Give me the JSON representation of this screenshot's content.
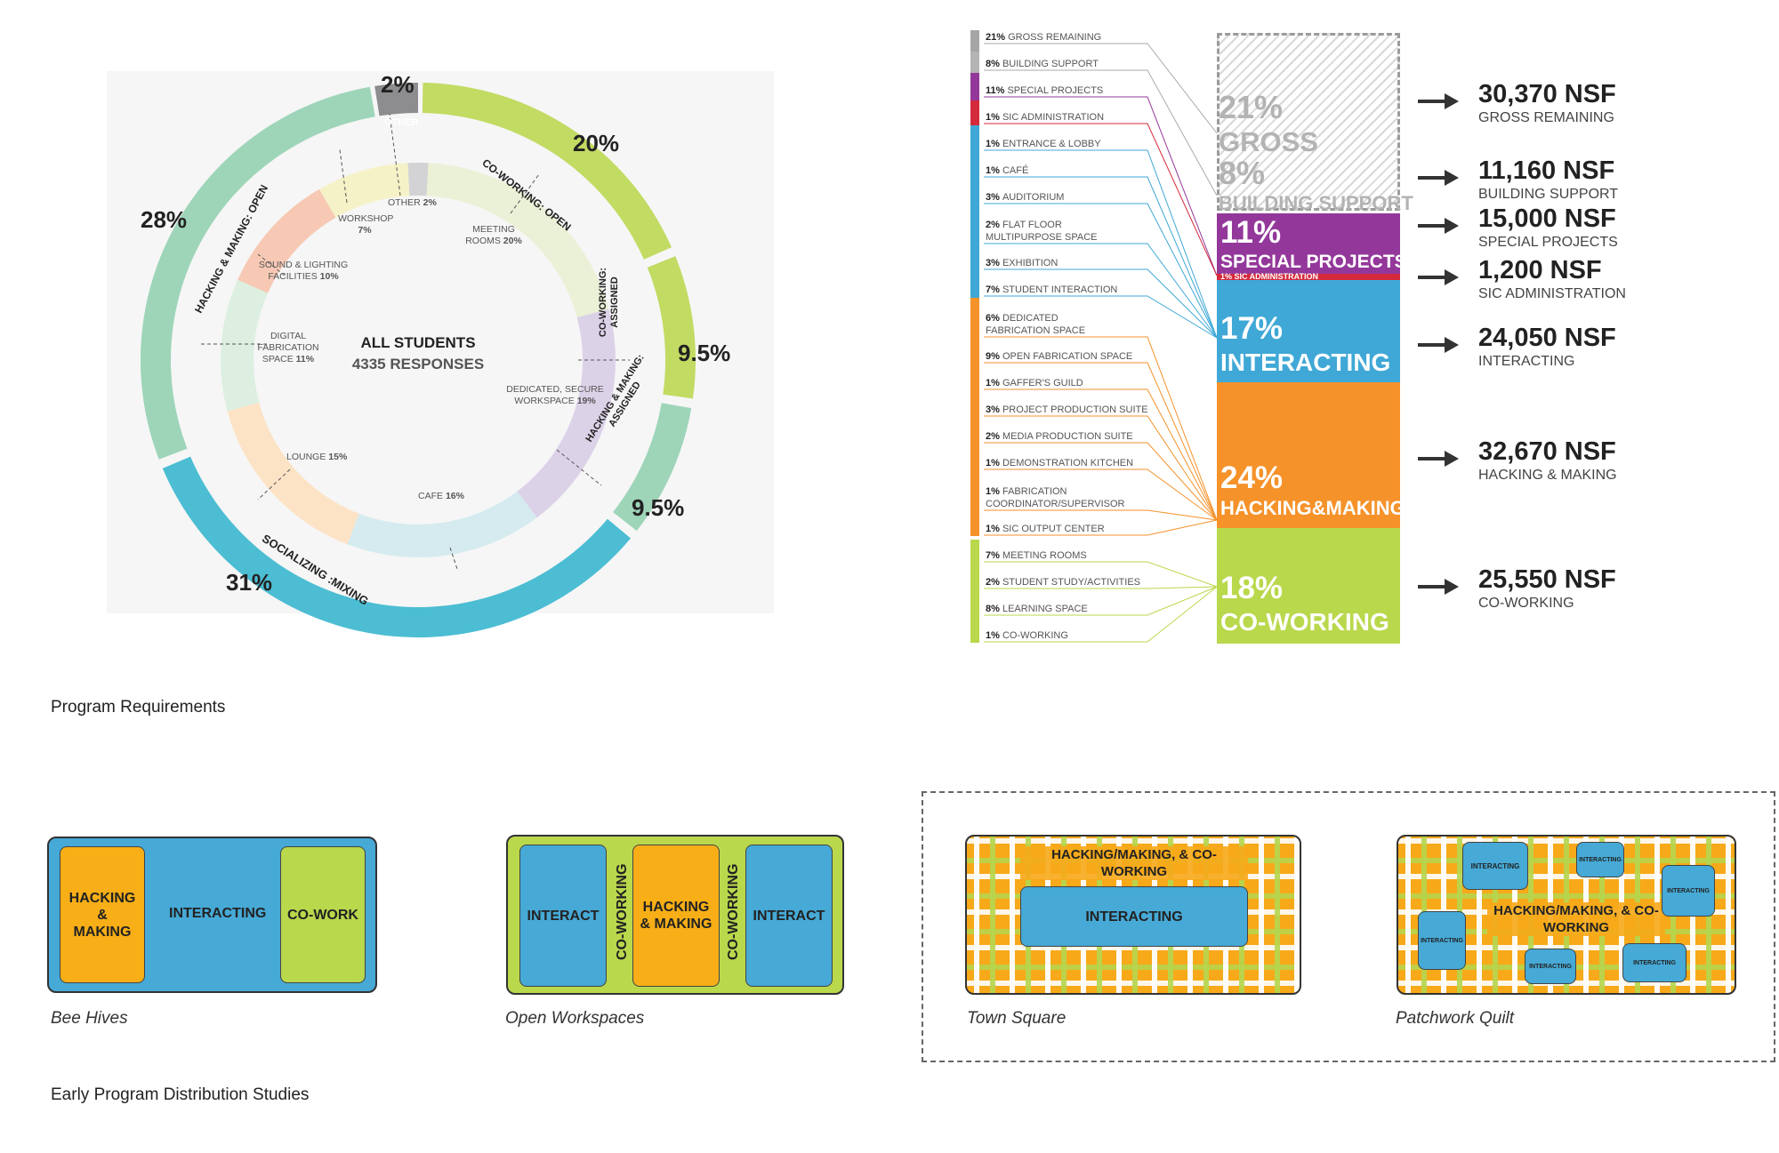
{
  "donut": {
    "center_title": "ALL STUDENTS",
    "center_subtitle": "4335 RESPONSES",
    "outer": [
      {
        "label": "OTHER",
        "pct": "2%"
      },
      {
        "label": "CO-WORKING: OPEN",
        "pct": "20%"
      },
      {
        "label": "CO-WORKING: ASSIGNED",
        "pct": "9.5%"
      },
      {
        "label": "HACKING & MAKING: ASSIGNED",
        "pct": "9.5%"
      },
      {
        "label": "SOCIALIZING :MIXING",
        "pct": "31%"
      },
      {
        "label": "HACKING & MAKING: OPEN",
        "pct": "28%"
      }
    ],
    "inner": [
      {
        "name": "OTHER",
        "pct": "2%"
      },
      {
        "name": "MEETING ROOMS",
        "pct": "20%"
      },
      {
        "name": "DEDICATED, SECURE WORKSPACE",
        "pct": "19%"
      },
      {
        "name": "CAFE",
        "pct": "16%"
      },
      {
        "name": "LOUNGE",
        "pct": "15%"
      },
      {
        "name": "DIGITAL FABRICATION SPACE",
        "pct": "11%"
      },
      {
        "name": "SOUND & LIGHTING FACILITIES",
        "pct": "10%"
      },
      {
        "name": "WORKSHOP",
        "pct": "7%"
      }
    ]
  },
  "program_list": [
    {
      "pct": "21%",
      "name": "GROSS REMAINING"
    },
    {
      "pct": "8%",
      "name": "BUILDING SUPPORT"
    },
    {
      "pct": "11%",
      "name": "SPECIAL PROJECTS"
    },
    {
      "pct": "1%",
      "name": "SIC ADMINISTRATION"
    },
    {
      "pct": "1%",
      "name": "ENTRANCE & LOBBY"
    },
    {
      "pct": "1%",
      "name": "CAFÉ"
    },
    {
      "pct": "3%",
      "name": "AUDITORIUM"
    },
    {
      "pct": "2%",
      "name": "FLAT FLOOR",
      "name2": "MULTIPURPOSE SPACE"
    },
    {
      "pct": "3%",
      "name": "EXHIBITION"
    },
    {
      "pct": "7%",
      "name": "STUDENT INTERACTION"
    },
    {
      "pct": "6%",
      "name": "DEDICATED",
      "name2": "FABRICATION SPACE"
    },
    {
      "pct": "9%",
      "name": "OPEN FABRICATION SPACE"
    },
    {
      "pct": "1%",
      "name": "GAFFER'S GUILD"
    },
    {
      "pct": "3%",
      "name": "PROJECT PRODUCTION SUITE"
    },
    {
      "pct": "2%",
      "name": "MEDIA PRODUCTION SUITE"
    },
    {
      "pct": "1%",
      "name": "DEMONSTRATION KITCHEN"
    },
    {
      "pct": "1%",
      "name": "FABRICATION",
      "name2": "COORDINATOR/SUPERVISOR"
    },
    {
      "pct": "1%",
      "name": "SIC OUTPUT CENTER"
    },
    {
      "pct": "7%",
      "name": "MEETING ROOMS"
    },
    {
      "pct": "2%",
      "name": "STUDENT STUDY/ACTIVITIES"
    },
    {
      "pct": "8%",
      "name": "LEARNING SPACE"
    },
    {
      "pct": "1%",
      "name": "CO-WORKING"
    }
  ],
  "stack": {
    "gross_pct": "21%",
    "gross_label": "GROSS",
    "support_pct": "8%",
    "support_label": "BUILDING SUPPORT",
    "special_pct": "11%",
    "special_label": "SPECIAL PROJECTS",
    "admin_label": "1% SIC ADMINISTRATION",
    "interacting_pct": "17%",
    "interacting_label": "INTERACTING",
    "hacking_pct": "24%",
    "hacking_label": "HACKING&MAKING",
    "coworking_pct": "18%",
    "coworking_label": "CO-WORKING"
  },
  "nsf": [
    {
      "value": "30,370 NSF",
      "label": "GROSS REMAINING"
    },
    {
      "value": "11,160 NSF",
      "label": "BUILDING SUPPORT"
    },
    {
      "value": "15,000 NSF",
      "label": "SPECIAL PROJECTS"
    },
    {
      "value": "1,200 NSF",
      "label": "SIC ADMINISTRATION"
    },
    {
      "value": "24,050 NSF",
      "label": "INTERACTING"
    },
    {
      "value": "32,670 NSF",
      "label": "HACKING & MAKING"
    },
    {
      "value": "25,550 NSF",
      "label": "CO-WORKING"
    }
  ],
  "captions": {
    "program_requirements": "Program Requirements",
    "early_studies": "Early Program Distribution Studies"
  },
  "studies": {
    "bee_hives": {
      "caption": "Bee Hives",
      "hacking": "HACKING & MAKING",
      "interacting": "INTERACTING",
      "cowork": "CO-WORK"
    },
    "open_workspaces": {
      "caption": "Open Workspaces",
      "interact": "INTERACT",
      "coworking": "CO-WORKING",
      "hacking": "HACKING & MAKING"
    },
    "town_square": {
      "caption": "Town Square",
      "top": "HACKING/MAKING, & CO-WORKING",
      "interacting": "INTERACTING"
    },
    "patchwork_quilt": {
      "caption": "Patchwork Quilt",
      "main": "HACKING/MAKING, & CO-WORKING",
      "small": "INTERACTING"
    }
  },
  "colors": {
    "green": "#c0d962",
    "blue": "#4bb6d1",
    "teal": "#9ed5b9",
    "gray": "#8d8d8f",
    "orange": "#f7a919",
    "purple": "#93389a",
    "red": "#d42a3c",
    "study_blue": "#46a9d6",
    "lightgreen": "#b9d84c"
  }
}
